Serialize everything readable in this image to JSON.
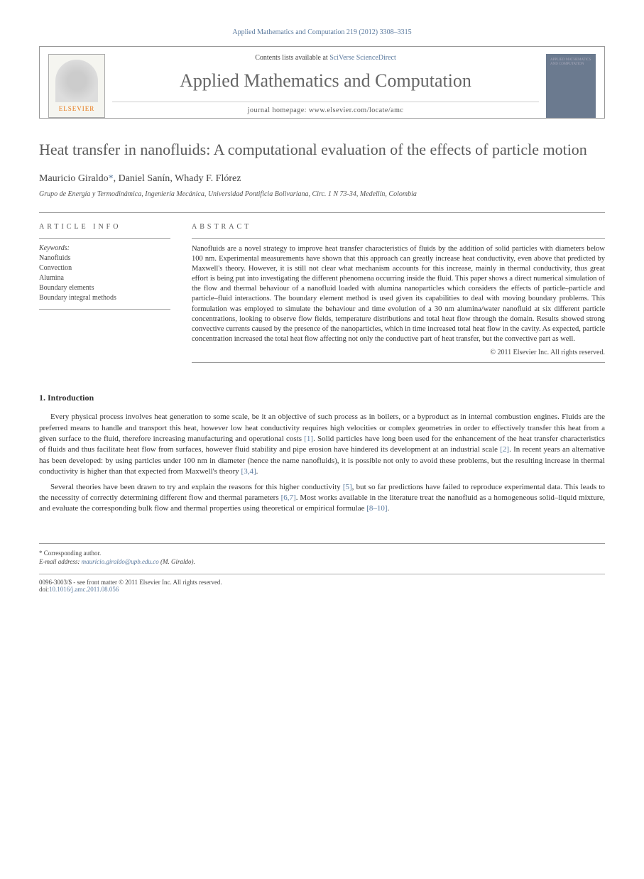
{
  "header": {
    "citation": "Applied Mathematics and Computation 219 (2012) 3308–3315",
    "contents_prefix": "Contents lists available at ",
    "contents_link": "SciVerse ScienceDirect",
    "journal_name": "Applied Mathematics and Computation",
    "homepage_prefix": "journal homepage: ",
    "homepage_url": "www.elsevier.com/locate/amc",
    "publisher_logo_text": "ELSEVIER",
    "cover_text": "APPLIED MATHEMATICS AND COMPUTATION"
  },
  "article": {
    "title": "Heat transfer in nanofluids: A computational evaluation of the effects of particle motion",
    "authors_html": "Mauricio Giraldo *, Daniel Sanín, Whady F. Flórez",
    "author1": "Mauricio Giraldo",
    "star": "*",
    "author_sep1": ", ",
    "author2": "Daniel Sanín",
    "author_sep2": ", ",
    "author3": "Whady F. Flórez",
    "affiliation": "Grupo de Energía y Termodinámica, Ingeniería Mecánica, Universidad Pontificia Bolivariana, Circ. 1 N 73-34, Medellín, Colombia"
  },
  "info": {
    "heading": "ARTICLE INFO",
    "keywords_label": "Keywords:",
    "keywords": [
      "Nanofluids",
      "Convection",
      "Alumina",
      "Boundary elements",
      "Boundary integral methods"
    ]
  },
  "abstract": {
    "heading": "ABSTRACT",
    "text": "Nanofluids are a novel strategy to improve heat transfer characteristics of fluids by the addition of solid particles with diameters below 100 nm. Experimental measurements have shown that this approach can greatly increase heat conductivity, even above that predicted by Maxwell's theory. However, it is still not clear what mechanism accounts for this increase, mainly in thermal conductivity, thus great effort is being put into investigating the different phenomena occurring inside the fluid. This paper shows a direct numerical simulation of the flow and thermal behaviour of a nanofluid loaded with alumina nanoparticles which considers the effects of particle–particle and particle–fluid interactions. The boundary element method is used given its capabilities to deal with moving boundary problems. This formulation was employed to simulate the behaviour and time evolution of a 30 nm alumina/water nanofluid at six different particle concentrations, looking to observe flow fields, temperature distributions and total heat flow through the domain. Results showed strong convective currents caused by the presence of the nanoparticles, which in time increased total heat flow in the cavity. As expected, particle concentration increased the total heat flow affecting not only the conductive part of heat transfer, but the convective part as well.",
    "copyright": "© 2011 Elsevier Inc. All rights reserved."
  },
  "introduction": {
    "heading": "1. Introduction",
    "p1_a": "Every physical process involves heat generation to some scale, be it an objective of such process as in boilers, or a byproduct as in internal combustion engines. Fluids are the preferred means to handle and transport this heat, however low heat conductivity requires high velocities or complex geometries in order to effectively transfer this heat from a given surface to the fluid, therefore increasing manufacturing and operational costs ",
    "ref1": "[1]",
    "p1_b": ". Solid particles have long been used for the enhancement of the heat transfer characteristics of fluids and thus facilitate heat flow from surfaces, however fluid stability and pipe erosion have hindered its development at an industrial scale ",
    "ref2": "[2]",
    "p1_c": ". In recent years an alternative has been developed: by using particles under 100 nm in diameter (hence the name nanofluids), it is possible not only to avoid these problems, but the resulting increase in thermal conductivity is higher than that expected from Maxwell's theory ",
    "ref34": "[3,4]",
    "p1_d": ".",
    "p2_a": "Several theories have been drawn to try and explain the reasons for this higher conductivity ",
    "ref5": "[5]",
    "p2_b": ", but so far predictions have failed to reproduce experimental data. This leads to the necessity of correctly determining different flow and thermal parameters ",
    "ref67": "[6,7]",
    "p2_c": ". Most works available in the literature treat the nanofluid as a homogeneous solid–liquid mixture, and evaluate the corresponding bulk flow and thermal properties using theoretical or empirical formulae ",
    "ref810": "[8–10]",
    "p2_d": "."
  },
  "footer": {
    "corresponding": "* Corresponding author.",
    "email_label": "E-mail address: ",
    "email": "mauricio.giraldo@upb.edu.co",
    "email_suffix": " (M. Giraldo).",
    "issn_line": "0096-3003/$ - see front matter © 2011 Elsevier Inc. All rights reserved.",
    "doi_label": "doi:",
    "doi": "10.1016/j.amc.2011.08.056"
  },
  "colors": {
    "link": "#5b7a9e",
    "text": "#333333",
    "heading_gray": "#5a5a5a",
    "rule": "#999999",
    "publisher_orange": "#e67817",
    "cover_bg": "#6b7a8f"
  }
}
